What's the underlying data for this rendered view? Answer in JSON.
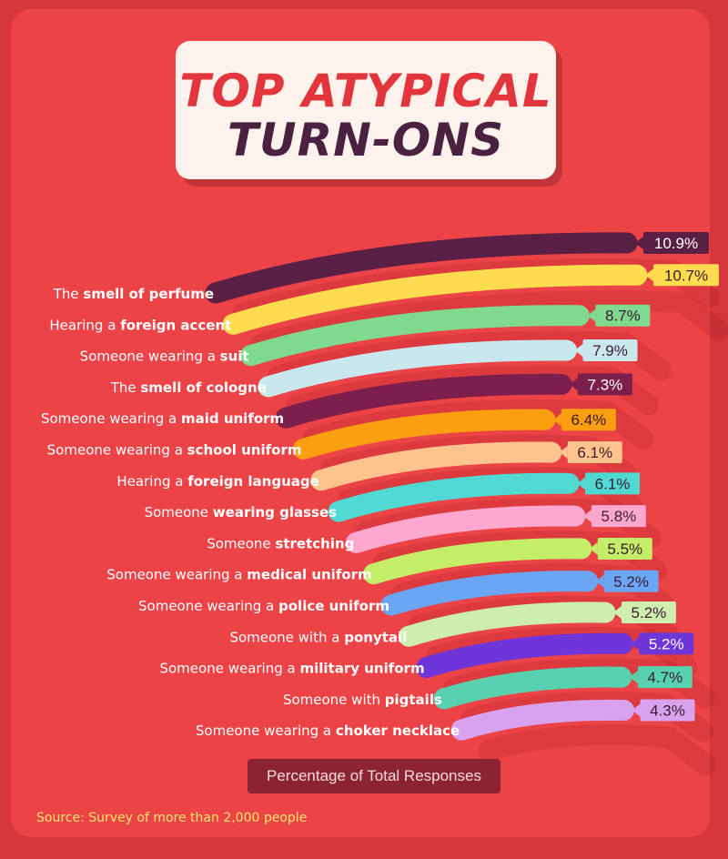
{
  "title": {
    "line1": "TOP ATYPICAL",
    "line2": "TURN-ONS"
  },
  "axis_label": "Percentage of Total Responses",
  "source": "Source: Survey of more than 2,000 people",
  "chart_data": {
    "type": "bar",
    "title": "TOP ATYPICAL TURN-ONS",
    "xlabel": "Percentage of Total Responses",
    "ylabel": "",
    "unit": "%",
    "categories": [
      "The smell of perfume",
      "Hearing a foreign accent",
      "Someone wearing a suit",
      "The smell of cologne",
      "Someone wearing a maid uniform",
      "Someone wearing a school uniform",
      "Hearing a foreign language",
      "Someone wearing glasses",
      "Someone stretching",
      "Someone wearing a medical uniform",
      "Someone wearing a police uniform",
      "Someone with a ponytail",
      "Someone wearing a military uniform",
      "Someone with pigtails",
      "Someone wearing a choker necklace"
    ],
    "label_parts": [
      [
        "The ",
        "smell of perfume"
      ],
      [
        "Hearing a ",
        "foreign accent"
      ],
      [
        "Someone wearing a ",
        "suit"
      ],
      [
        "The ",
        "smell of cologne"
      ],
      [
        "Someone wearing a ",
        "maid uniform"
      ],
      [
        "Someone wearing a ",
        "school uniform"
      ],
      [
        "Hearing a ",
        "foreign language"
      ],
      [
        "Someone ",
        "wearing glasses"
      ],
      [
        "Someone ",
        "stretching"
      ],
      [
        "Someone wearing a ",
        "medical uniform"
      ],
      [
        "Someone wearing a ",
        "police uniform"
      ],
      [
        "Someone with a ",
        "ponytail"
      ],
      [
        "Someone wearing a ",
        "military uniform"
      ],
      [
        "Someone with ",
        "pigtails"
      ],
      [
        "Someone wearing a ",
        "choker necklace"
      ]
    ],
    "values": [
      10.9,
      10.7,
      8.7,
      7.9,
      7.3,
      6.4,
      6.1,
      6.1,
      5.8,
      5.5,
      5.2,
      5.2,
      5.2,
      4.7,
      4.3
    ],
    "value_labels": [
      "10.9%",
      "10.7%",
      "8.7%",
      "7.9%",
      "7.3%",
      "6.4%",
      "6.1%",
      "6.1%",
      "5.8%",
      "5.5%",
      "5.2%",
      "5.2%",
      "5.2%",
      "4.7%",
      "4.3%"
    ],
    "colors": [
      "#5a1f44",
      "#ffdc4f",
      "#7fd98e",
      "#c8e8ee",
      "#7d1f4c",
      "#fb9f11",
      "#ffc38e",
      "#4fd9d2",
      "#ffa8cf",
      "#c4ee68",
      "#6aa6f4",
      "#cdeeae",
      "#6e36d9",
      "#58d2ae",
      "#d8a2ee"
    ],
    "label_colors": [
      "#5a1f44",
      "#ffdc4f",
      "#7fd98e",
      "#c8e8ee",
      "#7d1f4c",
      "#fb9f11",
      "#ffc38e",
      "#4fd9d2",
      "#ffa8cf",
      "#c4ee68",
      "#6aa6f4",
      "#cdeeae",
      "#6e36d9",
      "#58d2ae",
      "#d8a2ee"
    ],
    "label_text_colors": [
      "#ffffff",
      "#3a1a30",
      "#3a1a30",
      "#3a1a30",
      "#ffffff",
      "#3a1a30",
      "#3a1a30",
      "#3a1a30",
      "#3a1a30",
      "#3a1a30",
      "#3a1a30",
      "#3a1a30",
      "#ffffff",
      "#3a1a30",
      "#3a1a30"
    ]
  }
}
